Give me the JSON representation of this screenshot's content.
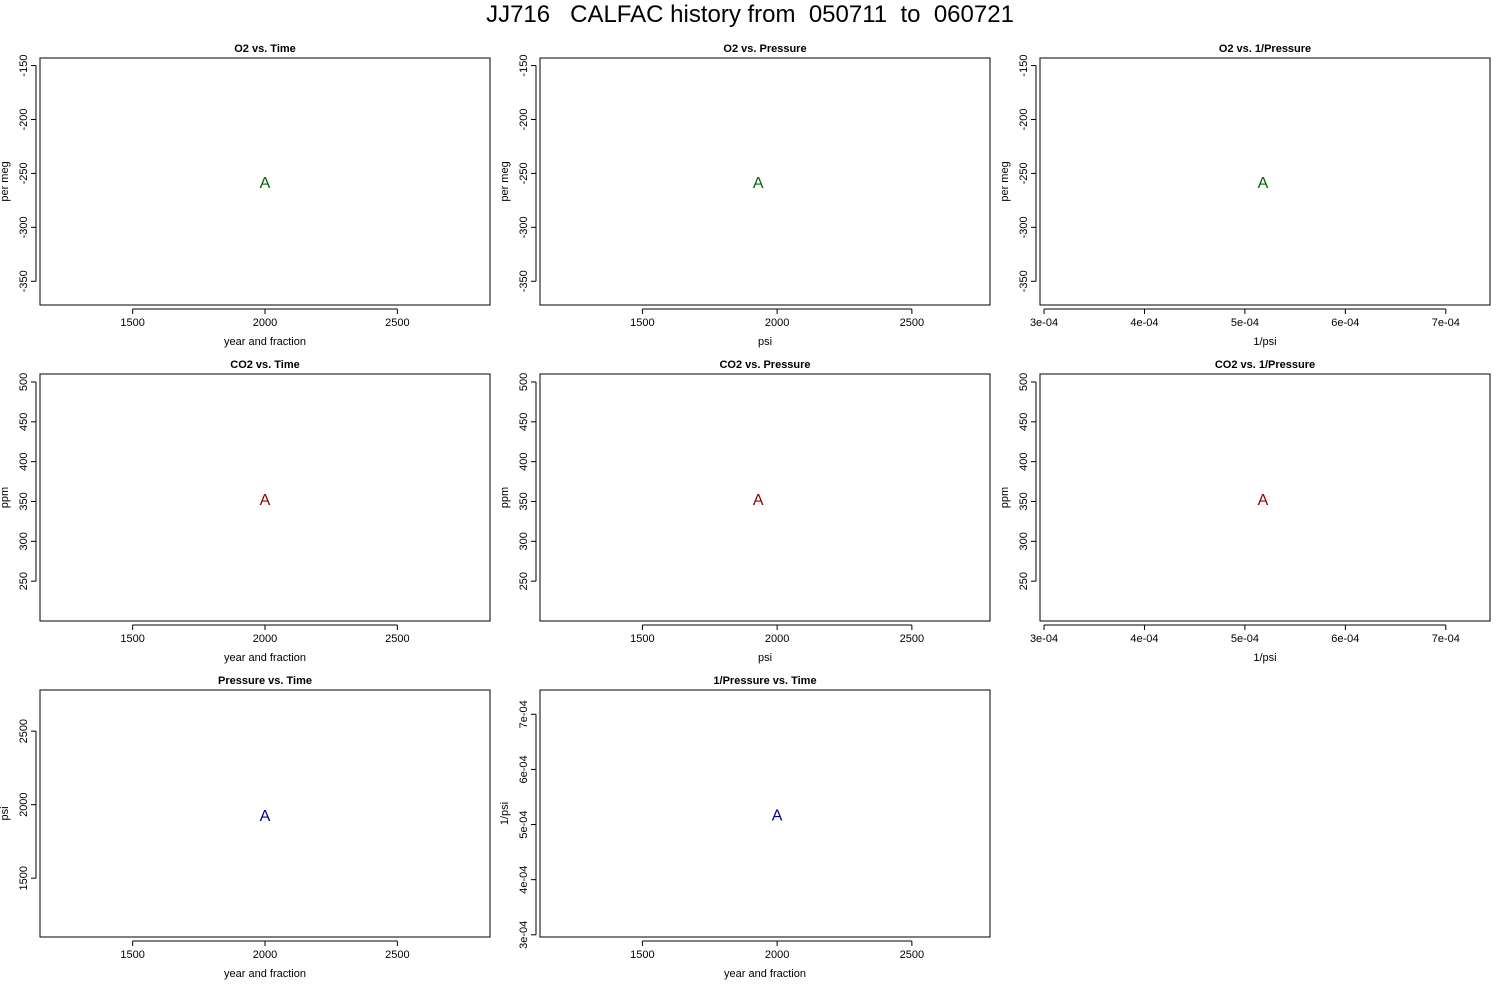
{
  "page": {
    "title": "JJ716   CALFAC history from  050711  to  060721"
  },
  "chart_data": [
    {
      "type": "scatter",
      "title": "O2 vs. Time",
      "xlabel": "year and fraction",
      "ylabel": "per meg",
      "xlim": [
        1150,
        2850
      ],
      "ylim": [
        -372,
        -143
      ],
      "xticks": [
        1500,
        2000,
        2500
      ],
      "xtick_labels": [
        "1500",
        "2000",
        "2500"
      ],
      "yticks": [
        -150,
        -200,
        -250,
        -300,
        -350
      ],
      "ytick_labels": [
        "-150",
        "-200",
        "-250",
        "-300",
        "-350"
      ],
      "points": [
        {
          "x": 2000,
          "y": -258,
          "label": "A"
        }
      ],
      "color": "#006400",
      "grid": false
    },
    {
      "type": "scatter",
      "title": "O2 vs. Pressure",
      "xlabel": "psi",
      "ylabel": "per meg",
      "xlim": [
        1120,
        2790
      ],
      "ylim": [
        -372,
        -143
      ],
      "xticks": [
        1500,
        2000,
        2500
      ],
      "xtick_labels": [
        "1500",
        "2000",
        "2500"
      ],
      "yticks": [
        -150,
        -200,
        -250,
        -300,
        -350
      ],
      "ytick_labels": [
        "-150",
        "-200",
        "-250",
        "-300",
        "-350"
      ],
      "points": [
        {
          "x": 1930,
          "y": -258,
          "label": "A"
        }
      ],
      "color": "#006400",
      "grid": false
    },
    {
      "type": "scatter",
      "title": "O2 vs. 1/Pressure",
      "xlabel": "1/psi",
      "ylabel": "per meg",
      "xlim": [
        0.000296,
        0.000744
      ],
      "ylim": [
        -372,
        -143
      ],
      "xticks": [
        0.0003,
        0.0004,
        0.0005,
        0.0006,
        0.0007
      ],
      "xtick_labels": [
        "3e-04",
        "4e-04",
        "5e-04",
        "6e-04",
        "7e-04"
      ],
      "yticks": [
        -150,
        -200,
        -250,
        -300,
        -350
      ],
      "ytick_labels": [
        "-150",
        "-200",
        "-250",
        "-300",
        "-350"
      ],
      "points": [
        {
          "x": 0.000518,
          "y": -258,
          "label": "A"
        }
      ],
      "color": "#006400",
      "grid": false
    },
    {
      "type": "scatter",
      "title": "CO2 vs. Time",
      "xlabel": "year and fraction",
      "ylabel": "ppm",
      "xlim": [
        1150,
        2850
      ],
      "ylim": [
        200,
        510
      ],
      "xticks": [
        1500,
        2000,
        2500
      ],
      "xtick_labels": [
        "1500",
        "2000",
        "2500"
      ],
      "yticks": [
        250,
        300,
        350,
        400,
        450,
        500
      ],
      "ytick_labels": [
        "250",
        "300",
        "350",
        "400",
        "450",
        "500"
      ],
      "points": [
        {
          "x": 2000,
          "y": 353,
          "label": "A"
        }
      ],
      "color": "#8b0000",
      "grid": false
    },
    {
      "type": "scatter",
      "title": "CO2 vs. Pressure",
      "xlabel": "psi",
      "ylabel": "ppm",
      "xlim": [
        1120,
        2790
      ],
      "ylim": [
        200,
        510
      ],
      "xticks": [
        1500,
        2000,
        2500
      ],
      "xtick_labels": [
        "1500",
        "2000",
        "2500"
      ],
      "yticks": [
        250,
        300,
        350,
        400,
        450,
        500
      ],
      "ytick_labels": [
        "250",
        "300",
        "350",
        "400",
        "450",
        "500"
      ],
      "points": [
        {
          "x": 1930,
          "y": 353,
          "label": "A"
        }
      ],
      "color": "#8b0000",
      "grid": false
    },
    {
      "type": "scatter",
      "title": "CO2 vs. 1/Pressure",
      "xlabel": "1/psi",
      "ylabel": "ppm",
      "xlim": [
        0.000296,
        0.000744
      ],
      "ylim": [
        200,
        510
      ],
      "xticks": [
        0.0003,
        0.0004,
        0.0005,
        0.0006,
        0.0007
      ],
      "xtick_labels": [
        "3e-04",
        "4e-04",
        "5e-04",
        "6e-04",
        "7e-04"
      ],
      "yticks": [
        250,
        300,
        350,
        400,
        450,
        500
      ],
      "ytick_labels": [
        "250",
        "300",
        "350",
        "400",
        "450",
        "500"
      ],
      "points": [
        {
          "x": 0.000518,
          "y": 353,
          "label": "A"
        }
      ],
      "color": "#8b0000",
      "grid": false
    },
    {
      "type": "scatter",
      "title": "Pressure vs. Time",
      "xlabel": "year and fraction",
      "ylabel": "psi",
      "xlim": [
        1150,
        2850
      ],
      "ylim": [
        1100,
        2780
      ],
      "xticks": [
        1500,
        2000,
        2500
      ],
      "xtick_labels": [
        "1500",
        "2000",
        "2500"
      ],
      "yticks": [
        1500,
        2000,
        2500
      ],
      "ytick_labels": [
        "1500",
        "2000",
        "2500"
      ],
      "points": [
        {
          "x": 2000,
          "y": 1930,
          "label": "A"
        }
      ],
      "color": "#00008b",
      "grid": false
    },
    {
      "type": "scatter",
      "title": "1/Pressure vs. Time",
      "xlabel": "year and fraction",
      "ylabel": "1/psi",
      "xlim": [
        1120,
        2790
      ],
      "ylim": [
        0.000296,
        0.000744
      ],
      "xticks": [
        1500,
        2000,
        2500
      ],
      "xtick_labels": [
        "1500",
        "2000",
        "2500"
      ],
      "yticks": [
        0.0003,
        0.0004,
        0.0005,
        0.0006,
        0.0007
      ],
      "ytick_labels": [
        "3e-04",
        "4e-04",
        "5e-04",
        "6e-04",
        "7e-04"
      ],
      "points": [
        {
          "x": 2000,
          "y": 0.000518,
          "label": "A"
        }
      ],
      "color": "#00008b",
      "grid": false
    }
  ]
}
